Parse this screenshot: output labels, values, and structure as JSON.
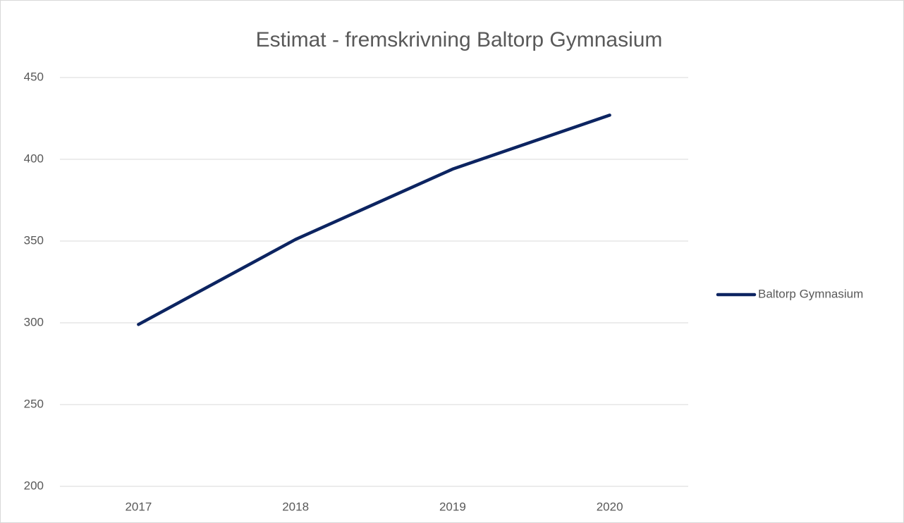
{
  "chart_data": {
    "type": "line",
    "title": "Estimat - fremskrivning Baltorp Gymnasium",
    "categories": [
      "2017",
      "2018",
      "2019",
      "2020"
    ],
    "series": [
      {
        "name": "Baltorp Gymnasium",
        "color": "#0c2461",
        "values": [
          299,
          351,
          394,
          427
        ]
      }
    ],
    "ylim": [
      200,
      450
    ],
    "yticks": [
      200,
      250,
      300,
      350,
      400,
      450
    ],
    "grid": true,
    "legend": "right"
  }
}
